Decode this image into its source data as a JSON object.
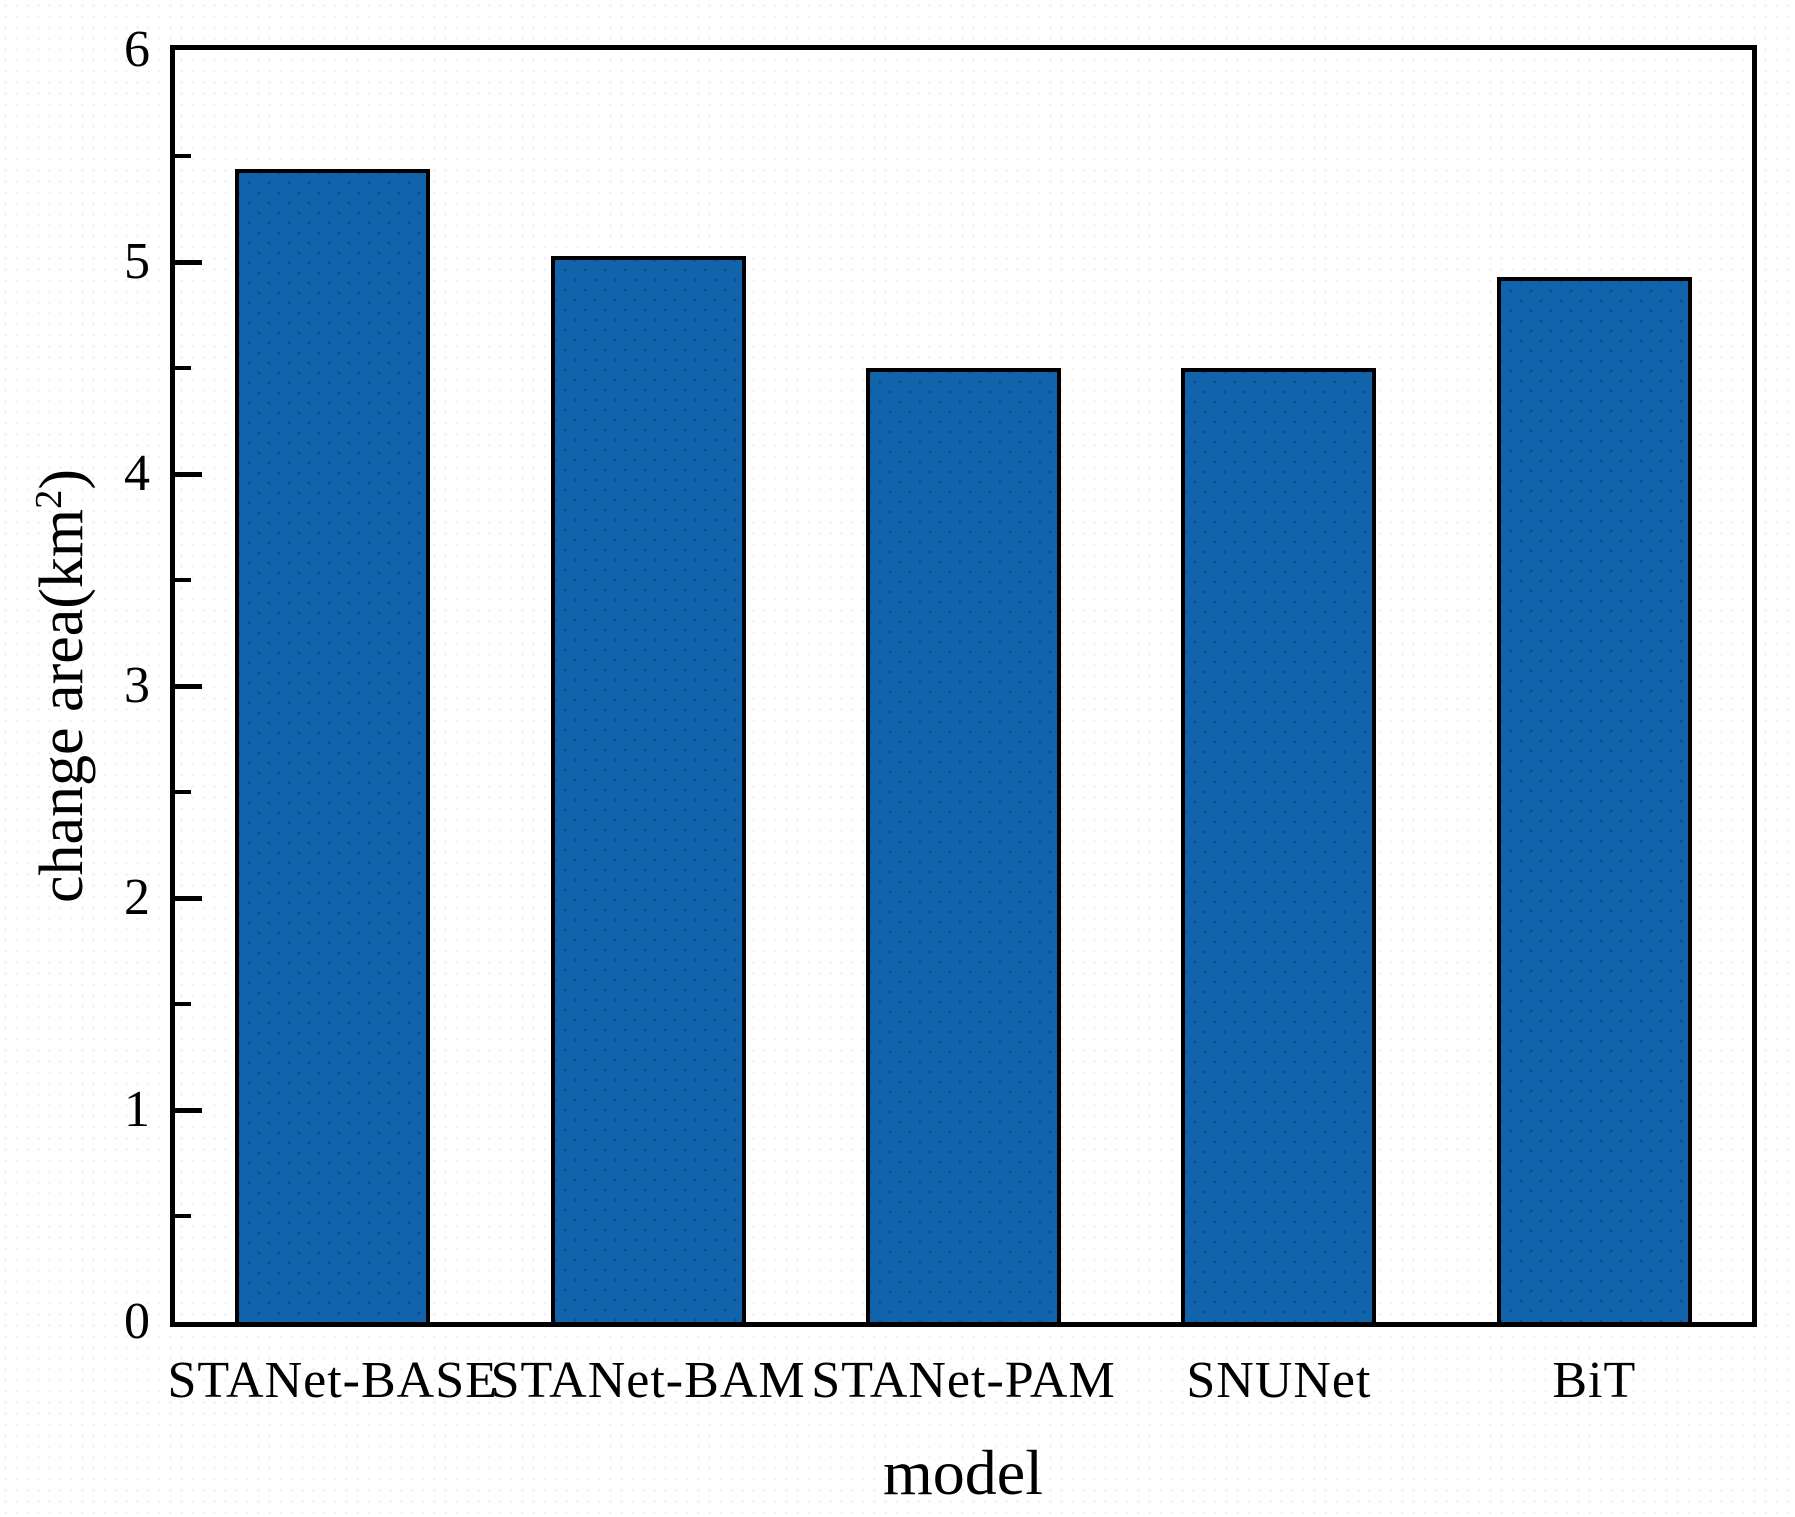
{
  "chart_data": {
    "type": "bar",
    "title": "",
    "categories": [
      "STANet-BASE",
      "STANet-BAM",
      "STANet-PAM",
      "SNUNet",
      "BiT"
    ],
    "values": [
      5.44,
      5.03,
      4.5,
      4.5,
      4.93
    ],
    "xlabel": "model",
    "ylabel": "change area(km2)",
    "ylabel_prefix": "change area(km",
    "ylabel_sup": "2",
    "ylabel_suffix": ")",
    "ylim": [
      0,
      6
    ],
    "ytick_step": 1,
    "yminor_step": 0.5,
    "yticks": [
      "0",
      "1",
      "2",
      "3",
      "4",
      "5",
      "6"
    ],
    "xticks_visible": false,
    "grid": false,
    "legend_position": "none",
    "bar_color": "#1164ab",
    "bar_dot_color": "#0c4d92",
    "bar_border_color": "#000000",
    "axis_color": "#000000",
    "background_color": "#ffffff"
  }
}
